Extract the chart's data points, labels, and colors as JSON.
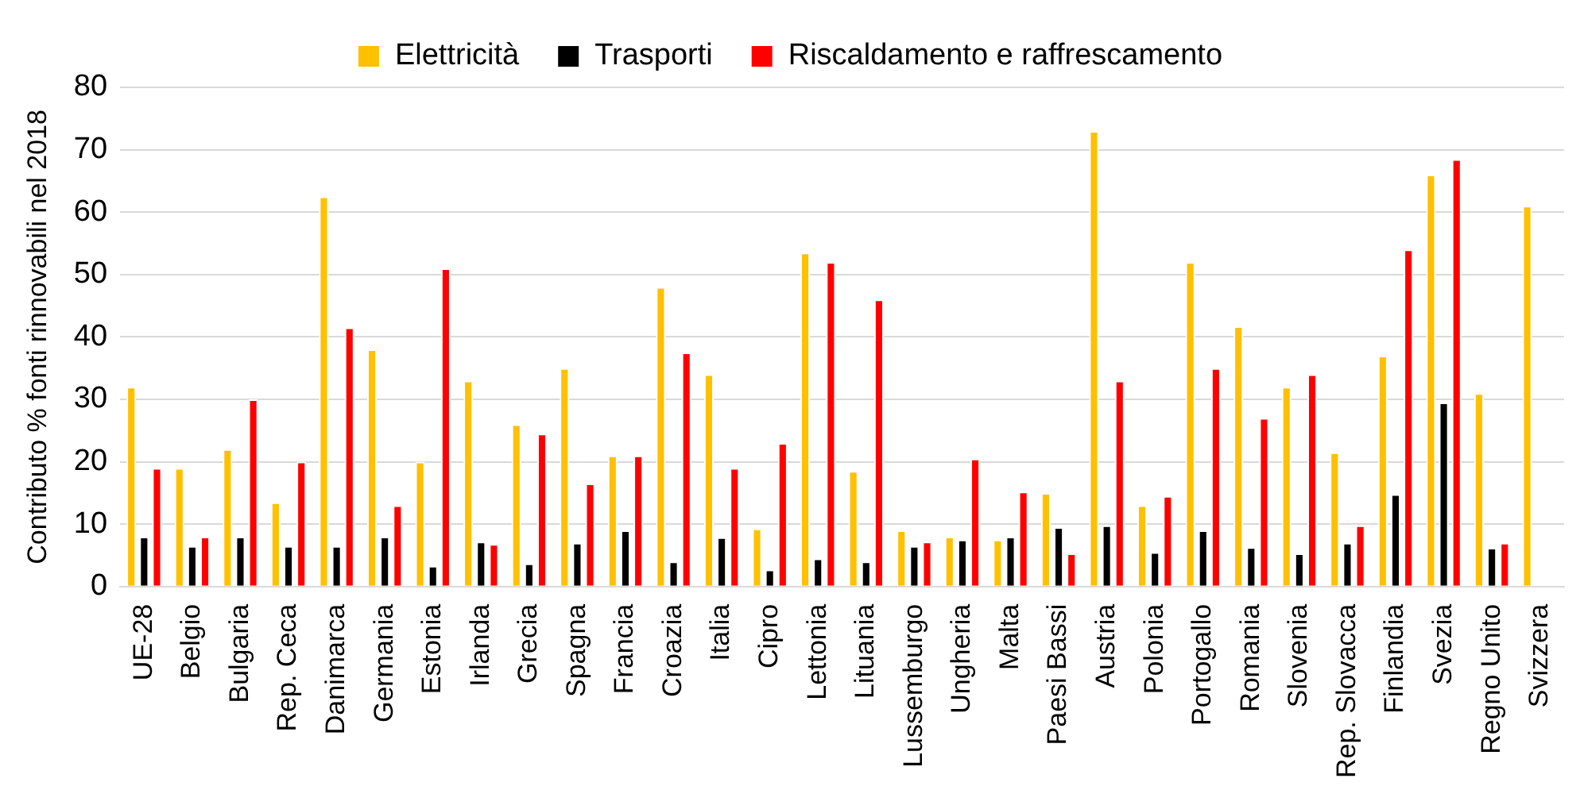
{
  "chart_data": {
    "type": "bar",
    "ylabel": "Contributo % fonti rinnovabili nel 2018",
    "categories": [
      "UE-28",
      "Belgio",
      "Bulgaria",
      "Rep. Ceca",
      "Danimarca",
      "Germania",
      "Estonia",
      "Irlanda",
      "Grecia",
      "Spagna",
      "Francia",
      "Croazia",
      "Italia",
      "Cipro",
      "Lettonia",
      "Lituania",
      "Lussemburgo",
      "Ungheria",
      "Malta",
      "Paesi Bassi",
      "Austria",
      "Polonia",
      "Portogallo",
      "Romania",
      "Slovenia",
      "Rep. Slovacca",
      "Finlandia",
      "Svezia",
      "Regno Unito",
      "Svizzera"
    ],
    "series": [
      {
        "name": "Elettricità",
        "color": "#ffc000",
        "values": [
          32,
          19,
          22,
          13.5,
          62.5,
          38,
          20,
          33,
          26,
          35,
          21,
          48,
          34,
          9.3,
          53.5,
          18.5,
          9,
          8,
          7.5,
          15,
          73,
          13,
          52,
          41.7,
          32,
          21.5,
          37,
          66,
          31,
          61
        ]
      },
      {
        "name": "Trasporti",
        "color": "#000000",
        "values": [
          8,
          6.5,
          8,
          6.5,
          6.5,
          8,
          3.3,
          7.2,
          3.7,
          7,
          9,
          4,
          7.9,
          2.7,
          4.5,
          4,
          6.5,
          7.5,
          8,
          9.5,
          9.8,
          5.5,
          9,
          6.3,
          5.3,
          7,
          14.8,
          29.5,
          6.2,
          null
        ]
      },
      {
        "name": "Riscaldamento e raffrescamento",
        "color": "#ff0000",
        "values": [
          19,
          8,
          30,
          20,
          41.5,
          13,
          51,
          6.8,
          24.5,
          16.5,
          21,
          37.5,
          19,
          23,
          52,
          46,
          7.2,
          20.5,
          15.2,
          5.3,
          33,
          14.5,
          35,
          27,
          34,
          9.8,
          54,
          68.5,
          7,
          null
        ]
      }
    ],
    "ylim": [
      0,
      80
    ],
    "yticks": [
      0,
      10,
      20,
      30,
      40,
      50,
      60,
      70,
      80
    ],
    "grid": "y",
    "legend": "top"
  }
}
